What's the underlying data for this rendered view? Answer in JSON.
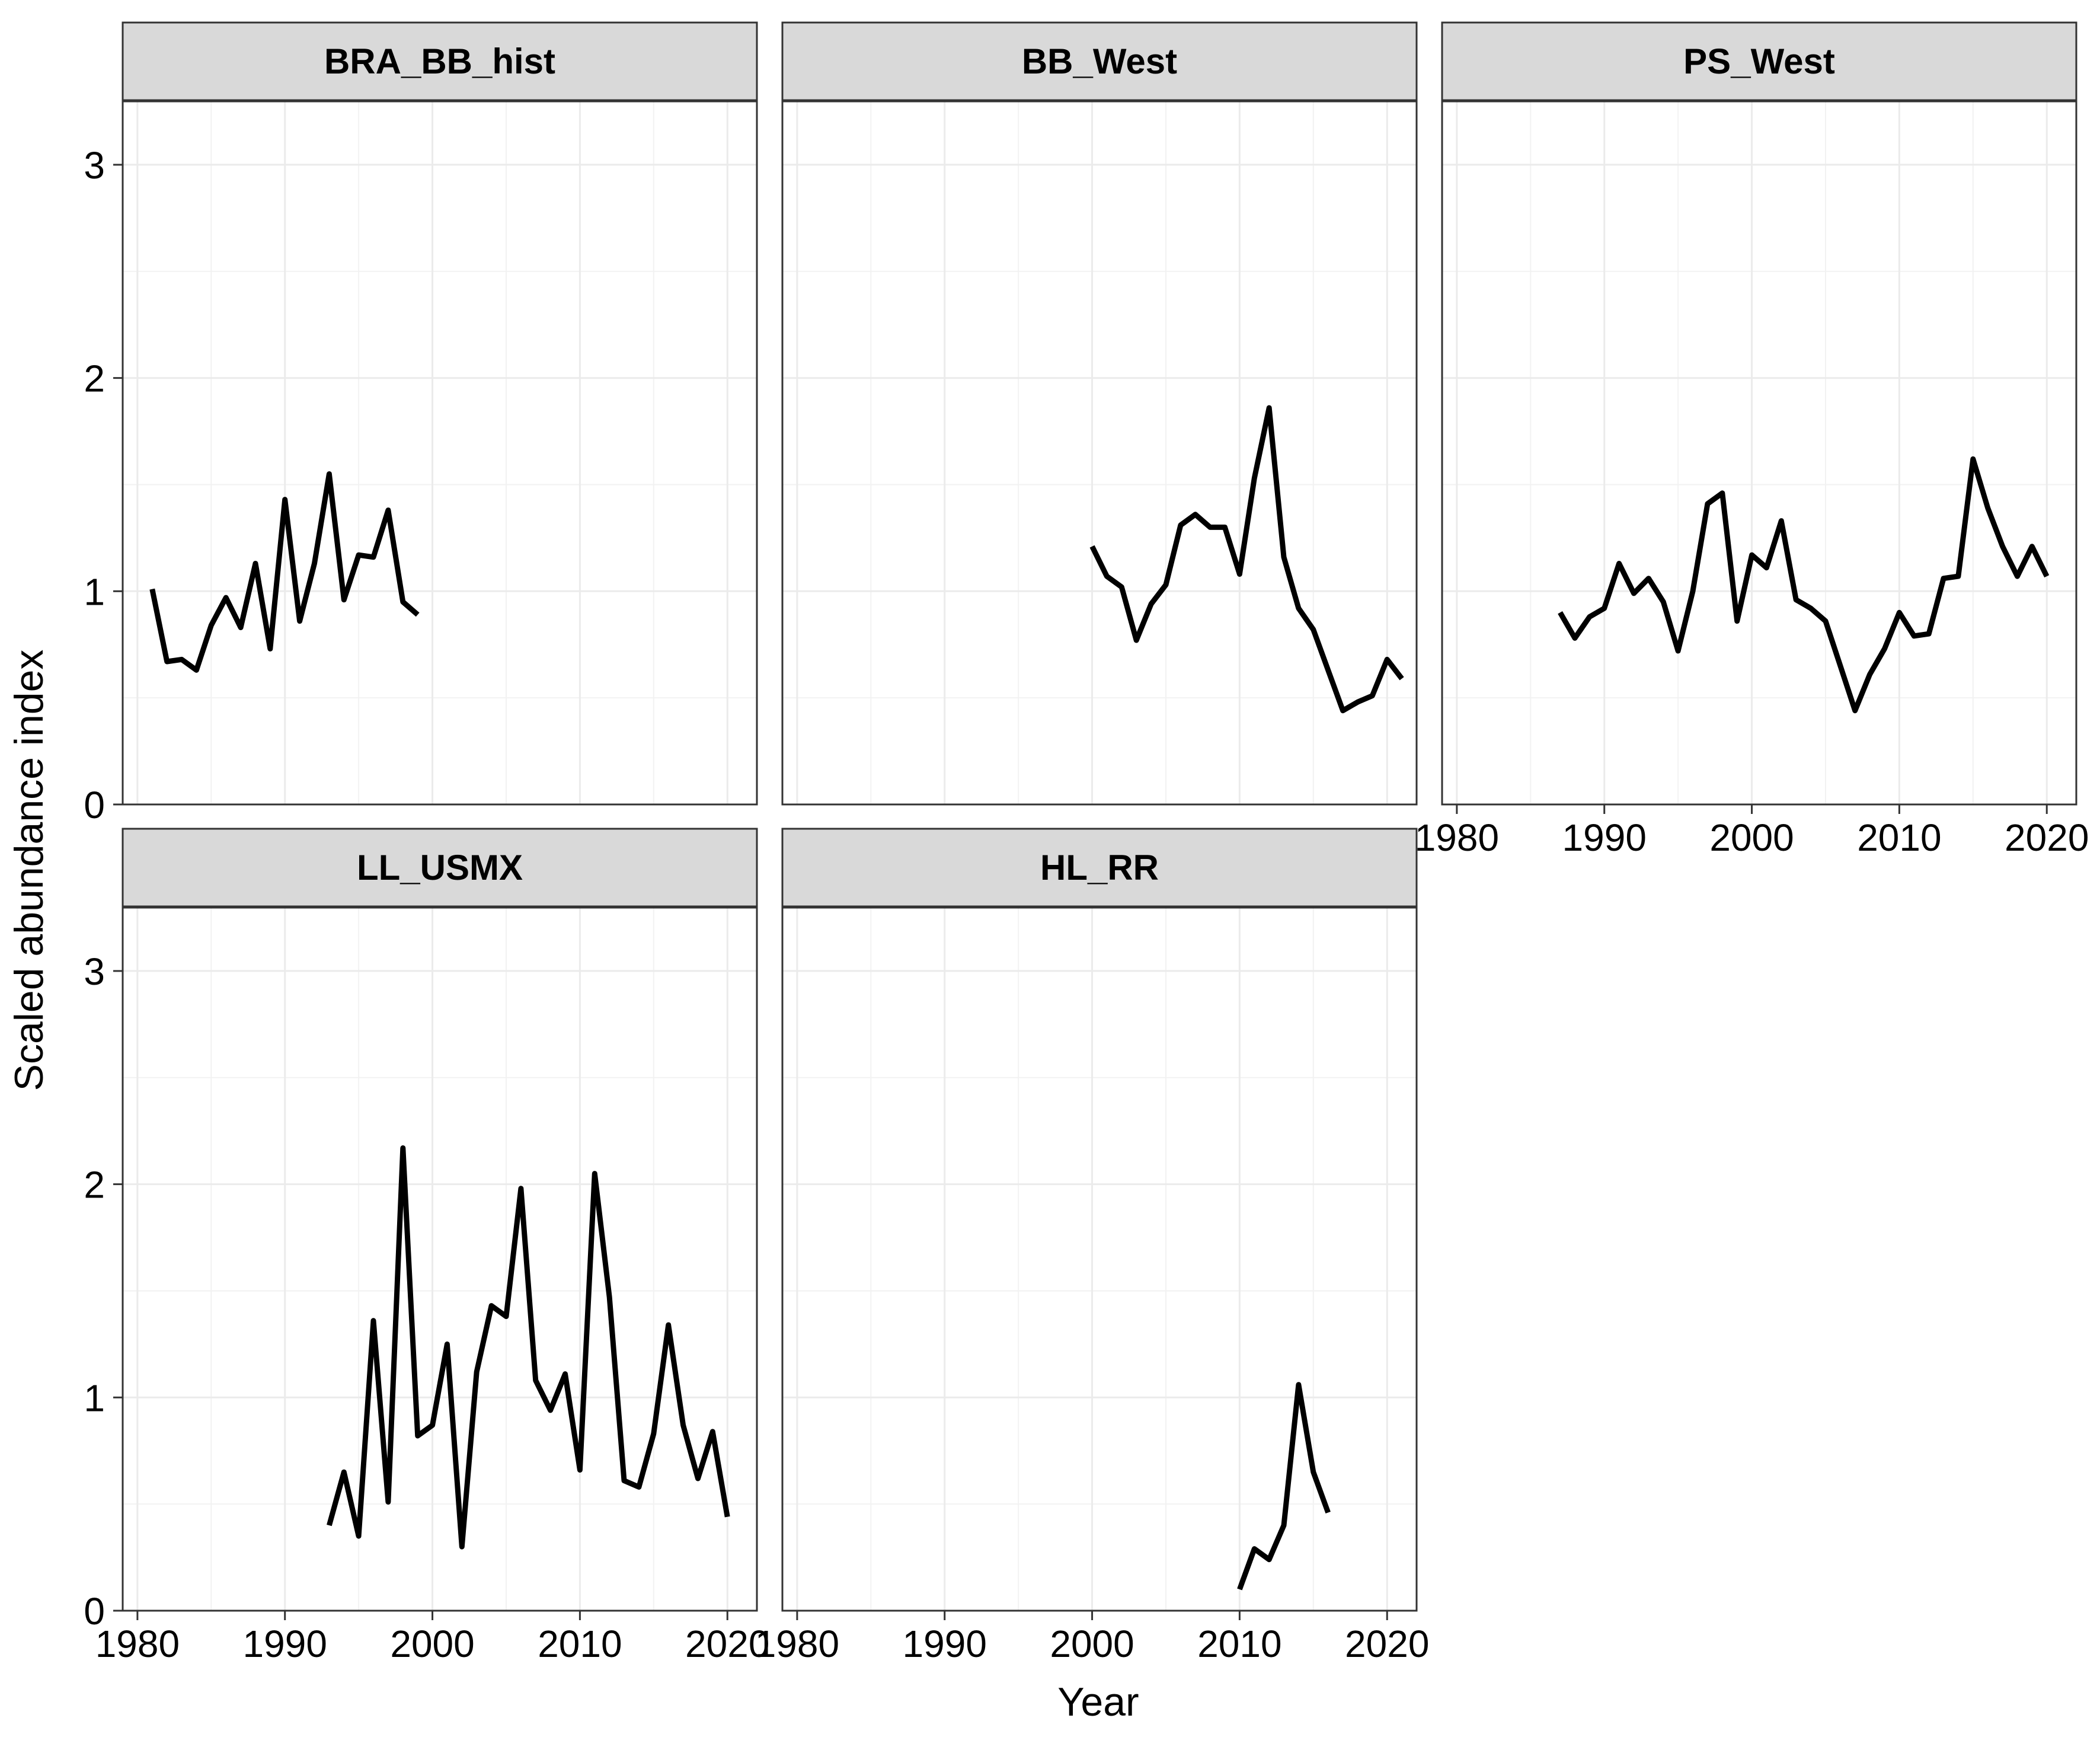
{
  "chart_data": {
    "type": "line",
    "layout": "facet_wrap",
    "ylabel": "Scaled abundance index",
    "xlabel": "Year",
    "xlim": [
      1979,
      2022
    ],
    "ylim": [
      0,
      3
    ],
    "x_ticks": [
      "1980",
      "1990",
      "2000",
      "2010",
      "2020"
    ],
    "y_ticks": [
      "0",
      "1",
      "2",
      "3"
    ],
    "grid": true,
    "line_color": "#000000",
    "strip_fill": "#d9d9d9",
    "panels": [
      {
        "title": "BRA_BB_hist",
        "x": [
          1981,
          1982,
          1983,
          1984,
          1985,
          1986,
          1987,
          1988,
          1989,
          1990,
          1991,
          1992,
          1993,
          1994,
          1995,
          1996,
          1997,
          1998,
          1999
        ],
        "y": [
          1.01,
          0.67,
          0.68,
          0.63,
          0.84,
          0.97,
          0.83,
          1.13,
          0.73,
          1.43,
          0.86,
          1.13,
          1.55,
          0.96,
          1.17,
          1.16,
          1.38,
          0.95,
          0.89
        ]
      },
      {
        "title": "BB_West",
        "x": [
          2000,
          2001,
          2002,
          2003,
          2004,
          2005,
          2006,
          2007,
          2008,
          2009,
          2010,
          2011,
          2012,
          2013,
          2014,
          2015,
          2016,
          2017,
          2018,
          2019,
          2020,
          2021
        ],
        "y": [
          1.21,
          1.07,
          1.02,
          0.77,
          0.94,
          1.03,
          1.31,
          1.36,
          1.3,
          1.3,
          1.08,
          1.53,
          1.86,
          1.16,
          0.92,
          0.82,
          0.63,
          0.44,
          0.48,
          0.51,
          0.68,
          0.59
        ]
      },
      {
        "title": "PS_West",
        "x": [
          1987,
          1988,
          1989,
          1990,
          1991,
          1992,
          1993,
          1994,
          1995,
          1996,
          1997,
          1998,
          1999,
          2000,
          2001,
          2002,
          2003,
          2004,
          2005,
          2006,
          2007,
          2008,
          2009,
          2010,
          2011,
          2012,
          2013,
          2014,
          2015,
          2016,
          2017,
          2018,
          2019,
          2020
        ],
        "y": [
          0.9,
          0.78,
          0.88,
          0.92,
          1.13,
          0.99,
          1.06,
          0.95,
          0.72,
          1.0,
          1.41,
          1.46,
          0.86,
          1.17,
          1.11,
          1.33,
          0.96,
          0.92,
          0.86,
          0.65,
          0.44,
          0.61,
          0.73,
          0.9,
          0.79,
          0.8,
          1.06,
          1.07,
          1.62,
          1.39,
          1.21,
          1.07,
          1.21,
          1.07
        ]
      },
      {
        "title": "LL_USMX",
        "x": [
          1993,
          1994,
          1995,
          1996,
          1997,
          1998,
          1999,
          2000,
          2001,
          2002,
          2003,
          2004,
          2005,
          2006,
          2007,
          2008,
          2009,
          2010,
          2011,
          2012,
          2013,
          2014,
          2015,
          2016,
          2017,
          2018,
          2019,
          2020
        ],
        "y": [
          0.4,
          0.65,
          0.35,
          1.36,
          0.51,
          2.17,
          0.82,
          0.87,
          1.25,
          0.3,
          1.12,
          1.43,
          1.38,
          1.98,
          1.08,
          0.94,
          1.11,
          0.66,
          2.05,
          1.47,
          0.61,
          0.58,
          0.83,
          1.34,
          0.87,
          0.62,
          0.84,
          0.44
        ]
      },
      {
        "title": "HL_RR",
        "x": [
          2010,
          2011,
          2012,
          2013,
          2014,
          2015,
          2016
        ],
        "y": [
          0.1,
          0.29,
          0.24,
          0.4,
          1.06,
          0.65,
          0.46
        ]
      }
    ]
  }
}
